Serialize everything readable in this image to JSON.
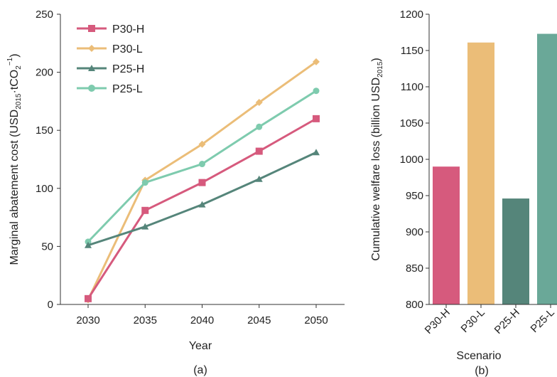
{
  "chart_data": [
    {
      "type": "line",
      "panel_label": "(a)",
      "xlabel": "Year",
      "ylabel_main": "Marginal abatement cost (USD",
      "ylabel_sub1": "2015",
      "ylabel_mid": "·tCO",
      "ylabel_sub2": "2",
      "ylabel_sup": "−1",
      "ylabel_end": ")",
      "x": [
        2030,
        2035,
        2040,
        2045,
        2050
      ],
      "xticks": [
        "2030",
        "2035",
        "2040",
        "2045",
        "2050"
      ],
      "ylim": [
        0,
        250
      ],
      "yticks": [
        "0",
        "50",
        "100",
        "150",
        "200",
        "250"
      ],
      "legend_position": "top-left",
      "series": [
        {
          "name": "P30-H",
          "color": "#d65a7d",
          "marker": "square",
          "values": [
            5,
            81,
            105,
            132,
            160
          ]
        },
        {
          "name": "P30-L",
          "color": "#ebbd78",
          "marker": "diamond",
          "values": [
            4,
            107,
            138,
            174,
            209
          ]
        },
        {
          "name": "P25-H",
          "color": "#55857a",
          "marker": "triangle",
          "values": [
            51,
            67,
            86,
            108,
            131
          ]
        },
        {
          "name": "P25-L",
          "color": "#7ecbae",
          "marker": "circle",
          "values": [
            54,
            105,
            121,
            153,
            184
          ]
        }
      ]
    },
    {
      "type": "bar",
      "panel_label": "(b)",
      "xlabel": "Scenario",
      "ylabel_main": "Cumulative welfare loss (billion USD",
      "ylabel_sub": "2015",
      "ylabel_end": ")",
      "categories": [
        "P30-H",
        "P30-L",
        "P25-H",
        "P25-L"
      ],
      "values": [
        990,
        1161,
        946,
        1173
      ],
      "colors": [
        "#d65a7d",
        "#ebbd78",
        "#55857a",
        "#6aa898"
      ],
      "ylim": [
        800,
        1200
      ],
      "yticks": [
        "800",
        "850",
        "900",
        "950",
        "1000",
        "1050",
        "1100",
        "1150",
        "1200"
      ]
    }
  ]
}
